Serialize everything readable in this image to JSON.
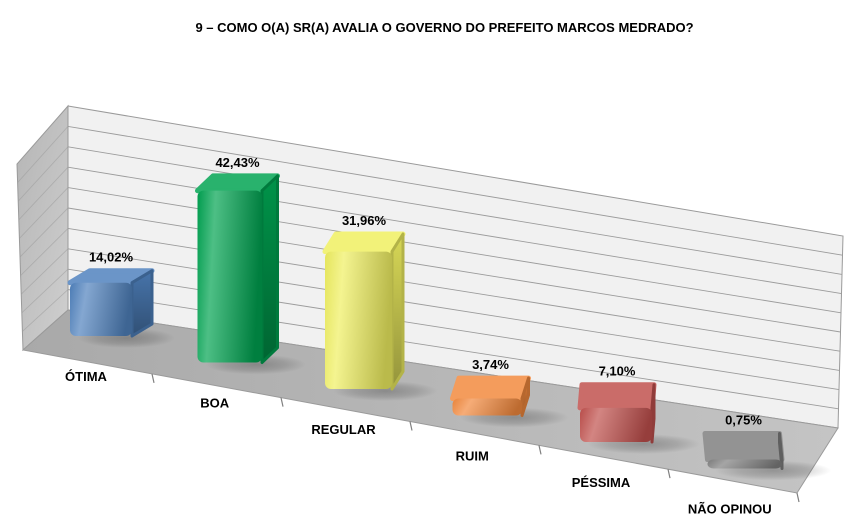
{
  "title": "9 – COMO O(A) SR(A) AVALIA O GOVERNO DO PREFEITO MARCOS MEDRADO?",
  "chart_data": {
    "type": "bar",
    "style": "3d-perspective-rounded-box",
    "title": "9 – COMO O(A) SR(A) AVALIA O GOVERNO DO PREFEITO MARCOS MEDRADO?",
    "categories": [
      "ÓTIMA",
      "BOA",
      "REGULAR",
      "RUIM",
      "PÉSSIMA",
      "NÃO OPINOU"
    ],
    "values": [
      14.02,
      42.43,
      31.96,
      3.74,
      7.1,
      0.75
    ],
    "value_labels": [
      "14,02%",
      "42,43%",
      "31,96%",
      "3,74%",
      "7,10%",
      "0,75%"
    ],
    "bar_colors": [
      "#4f81bd",
      "#00a351",
      "#efef60",
      "#f2893d",
      "#c0504d",
      "#7f7f7f"
    ],
    "ylim": [
      0,
      50
    ],
    "gridline_step": 5,
    "grid": true,
    "legend": "none",
    "xlabel": "",
    "ylabel": "",
    "scene_colors": {
      "back_wall": "#f1f1f1",
      "side_wall_light": "#cfcfcf",
      "side_wall_dark": "#b5b5b5",
      "floor_light": "#c4c4c4",
      "floor_dark": "#a9a9a9",
      "gridline": "#9c9c9c",
      "edge": "#9a9a9a",
      "label_color": "#000000"
    }
  }
}
